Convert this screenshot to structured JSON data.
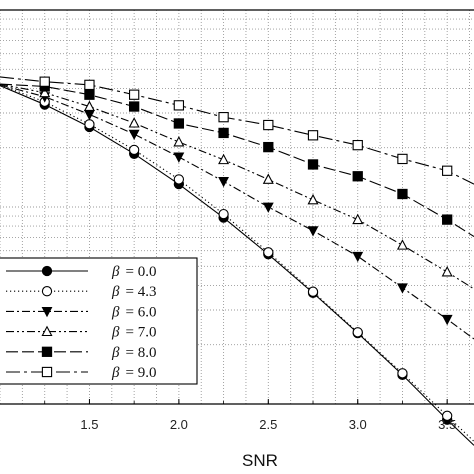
{
  "chart_data": {
    "type": "line",
    "xlabel": "SNR",
    "ylabel": "",
    "xlim": [
      1.0,
      3.65
    ],
    "ylim": [
      0.0,
      1.0
    ],
    "yscale": "log",
    "grid": true,
    "legend_position": "lower-left",
    "x_ticks": [
      "1.5",
      "2.0",
      "2.5",
      "3.0",
      "3.5"
    ],
    "x_tick_values": [
      1.5,
      2.0,
      2.5,
      3.0,
      3.5
    ],
    "series": [
      {
        "name": "β = 0.0",
        "symbol": "β",
        "value_label": "= 0.0",
        "marker": "filled-circle",
        "dash": "solid",
        "x": [
          1.0,
          1.25,
          1.5,
          1.75,
          2.0,
          2.25,
          2.5,
          2.75,
          3.0,
          3.25,
          3.5,
          3.65
        ],
        "y": [
          0.808,
          0.76,
          0.703,
          0.635,
          0.558,
          0.473,
          0.38,
          0.282,
          0.18,
          0.074,
          -0.04,
          -0.105
        ]
      },
      {
        "name": "β = 4.3",
        "symbol": "β",
        "value_label": "= 4.3",
        "marker": "open-circle",
        "dash": "dot",
        "x": [
          1.0,
          1.25,
          1.5,
          1.75,
          2.0,
          2.25,
          2.5,
          2.75,
          3.0,
          3.25,
          3.5,
          3.65
        ],
        "y": [
          0.81,
          0.767,
          0.71,
          0.645,
          0.57,
          0.482,
          0.385,
          0.285,
          0.182,
          0.078,
          -0.03,
          -0.095
        ]
      },
      {
        "name": "β = 6.0",
        "symbol": "β",
        "value_label": "= 6.0",
        "marker": "filled-triangle-down",
        "dash": "dash-dot",
        "x": [
          1.0,
          1.25,
          1.5,
          1.75,
          2.0,
          2.25,
          2.5,
          2.75,
          3.0,
          3.25,
          3.5,
          3.65
        ],
        "y": [
          0.81,
          0.78,
          0.735,
          0.685,
          0.627,
          0.565,
          0.5,
          0.44,
          0.375,
          0.295,
          0.215,
          0.165
        ]
      },
      {
        "name": "β = 7.0",
        "symbol": "β",
        "value_label": "= 7.0",
        "marker": "open-triangle",
        "dash": "dash-dot-dot",
        "x": [
          1.0,
          1.25,
          1.5,
          1.75,
          2.0,
          2.25,
          2.5,
          2.75,
          3.0,
          3.25,
          3.5,
          3.65
        ],
        "y": [
          0.812,
          0.79,
          0.755,
          0.713,
          0.665,
          0.62,
          0.57,
          0.518,
          0.468,
          0.403,
          0.335,
          0.292
        ]
      },
      {
        "name": "β = 8.0",
        "symbol": "β",
        "value_label": "= 8.0",
        "marker": "filled-square",
        "dash": "long-dash",
        "x": [
          1.0,
          1.25,
          1.5,
          1.75,
          2.0,
          2.25,
          2.5,
          2.75,
          3.0,
          3.25,
          3.5,
          3.65
        ],
        "y": [
          0.812,
          0.806,
          0.785,
          0.755,
          0.712,
          0.688,
          0.652,
          0.608,
          0.578,
          0.533,
          0.468,
          0.425
        ]
      },
      {
        "name": "β = 9.0",
        "symbol": "β",
        "value_label": "= 9.0",
        "marker": "open-square",
        "dash": "long-dash-dot",
        "x": [
          1.0,
          1.25,
          1.5,
          1.75,
          2.0,
          2.25,
          2.5,
          2.75,
          3.0,
          3.25,
          3.5,
          3.65
        ],
        "y": [
          0.83,
          0.818,
          0.81,
          0.785,
          0.758,
          0.728,
          0.708,
          0.682,
          0.657,
          0.622,
          0.592,
          0.558
        ]
      }
    ]
  }
}
